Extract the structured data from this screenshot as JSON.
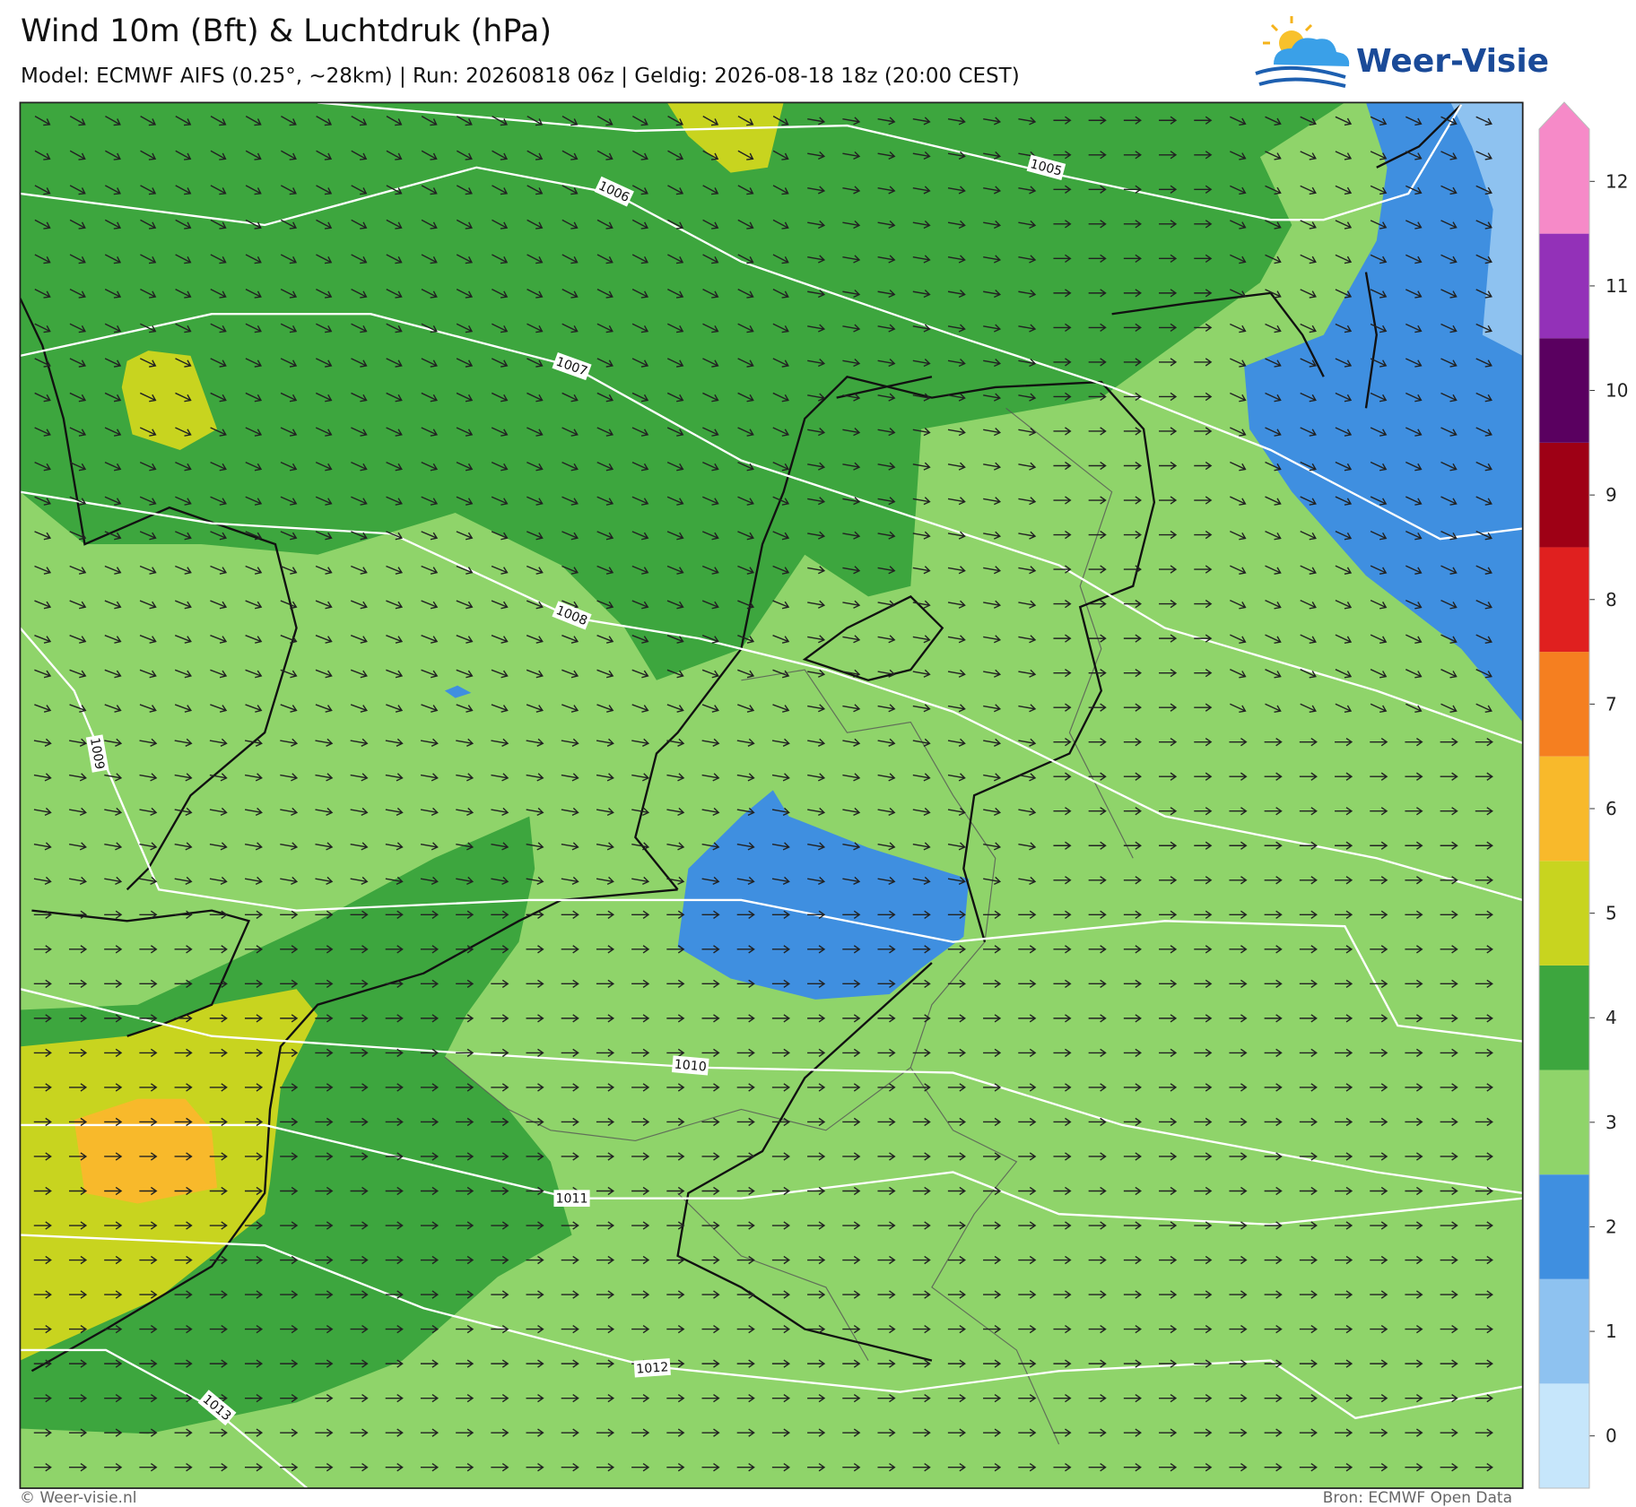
{
  "header": {
    "title": "Wind 10m (Bft) & Luchtdruk (hPa)",
    "subtitle": "Model: ECMWF AIFS (0.25°, ~28km)  |  Run: 20260818 06z  |  Geldig: 2026-08-18 18z (20:00 CEST)",
    "logo": "Weer-Visie"
  },
  "isobars": [
    1005,
    1006,
    1007,
    1008,
    1009,
    1010,
    1011,
    1012,
    1013
  ],
  "colorbar": {
    "levels": [
      0,
      1,
      2,
      3,
      4,
      5,
      6,
      7,
      8,
      9,
      10,
      11,
      12
    ],
    "colors": [
      "#c6e6fb",
      "#8ec2f0",
      "#3f8fe0",
      "#8fd46a",
      "#3da63e",
      "#c8d41f",
      "#f8b92b",
      "#f57f20",
      "#e0201f",
      "#9e0015",
      "#5a0060",
      "#9331b8",
      "#f68ac8"
    ]
  },
  "footer": {
    "left": "© Weer-visie.nl",
    "right": "Bron: ECMWF Open Data"
  }
}
